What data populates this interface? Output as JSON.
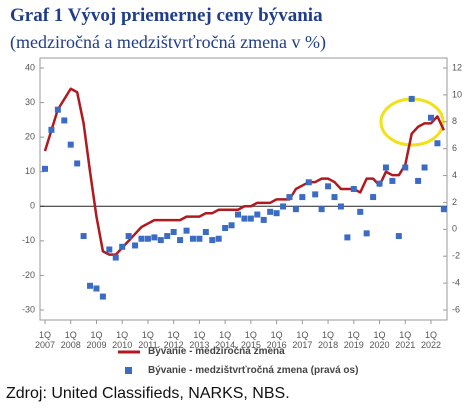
{
  "title": "Graf 1 Vývoj priemernej ceny bývania",
  "subtitle": "(medziročná a medzištvrťročná zmena v %)",
  "source": "Zdroj: United Classifieds, NARKS, NBS.",
  "chart_data": {
    "type": "line",
    "ylim": [
      -30,
      40
    ],
    "yticks": [
      -30,
      -20,
      -10,
      0,
      10,
      20,
      30,
      40
    ],
    "y2lim": [
      -6,
      12
    ],
    "y2ticks": [
      -6,
      -4,
      -2,
      0,
      2,
      4,
      6,
      8,
      10,
      12
    ],
    "categories": [
      "1Q 2007",
      null,
      null,
      null,
      "1Q 2008",
      null,
      null,
      null,
      "1Q 2009",
      null,
      null,
      null,
      "1Q 2010",
      null,
      null,
      null,
      "1Q 2011",
      null,
      null,
      null,
      "1Q 2012",
      null,
      null,
      null,
      "1Q 2013",
      null,
      null,
      null,
      "1Q 2014",
      null,
      null,
      null,
      "1Q 2015",
      null,
      null,
      null,
      "1Q 2016",
      null,
      null,
      null,
      "1Q 2017",
      null,
      null,
      null,
      "1Q 2018",
      null,
      null,
      null,
      "1Q 2019",
      null,
      null,
      null,
      "1Q 2020",
      null,
      null,
      null,
      "1Q 2021",
      null,
      null,
      null,
      "1Q 2022",
      null,
      null
    ],
    "series": [
      {
        "name": "Bývanie - medziročná zmena",
        "color": "#b0191e",
        "values": [
          16,
          22,
          28,
          31,
          34,
          33,
          24,
          10,
          -3,
          -13,
          -14,
          -14,
          -12,
          -10,
          -8,
          -6,
          -5,
          -4,
          -4,
          -4,
          -4,
          -4,
          -3,
          -3,
          -3,
          -2,
          -2,
          -1,
          -1,
          -1,
          -1,
          0,
          0,
          1,
          1,
          1,
          2,
          2,
          2,
          5,
          6,
          7,
          7,
          8,
          8,
          7,
          5,
          5,
          5,
          4,
          8,
          8,
          6,
          10,
          9,
          9,
          12,
          21,
          23,
          24,
          24,
          26,
          22
        ]
      },
      {
        "name": "Bývanie - medzištvrťročná zmena (pravá os)",
        "color": "#3b6cc3",
        "type": "scatter",
        "axis": "y2",
        "values": [
          4.5,
          7.4,
          8.9,
          8.1,
          6.3,
          4.9,
          -0.5,
          -4.2,
          -4.4,
          -5.0,
          -1.5,
          -2.1,
          -1.3,
          -0.5,
          -1.2,
          -0.7,
          -0.7,
          -0.6,
          -0.8,
          -0.5,
          -0.2,
          -0.8,
          -0.1,
          -0.7,
          -0.7,
          -0.2,
          -0.8,
          -0.7,
          0.1,
          0.3,
          1.1,
          0.8,
          0.8,
          1.1,
          0.7,
          1.3,
          1.2,
          1.7,
          2.4,
          1.5,
          2.4,
          3.5,
          2.6,
          1.5,
          3.2,
          2.4,
          1.7,
          -0.6,
          3.0,
          1.3,
          -0.3,
          2.4,
          3.4,
          4.6,
          3.6,
          -0.5,
          4.6,
          9.7,
          3.6,
          4.6,
          8.3,
          6.4,
          1.5
        ]
      }
    ]
  }
}
